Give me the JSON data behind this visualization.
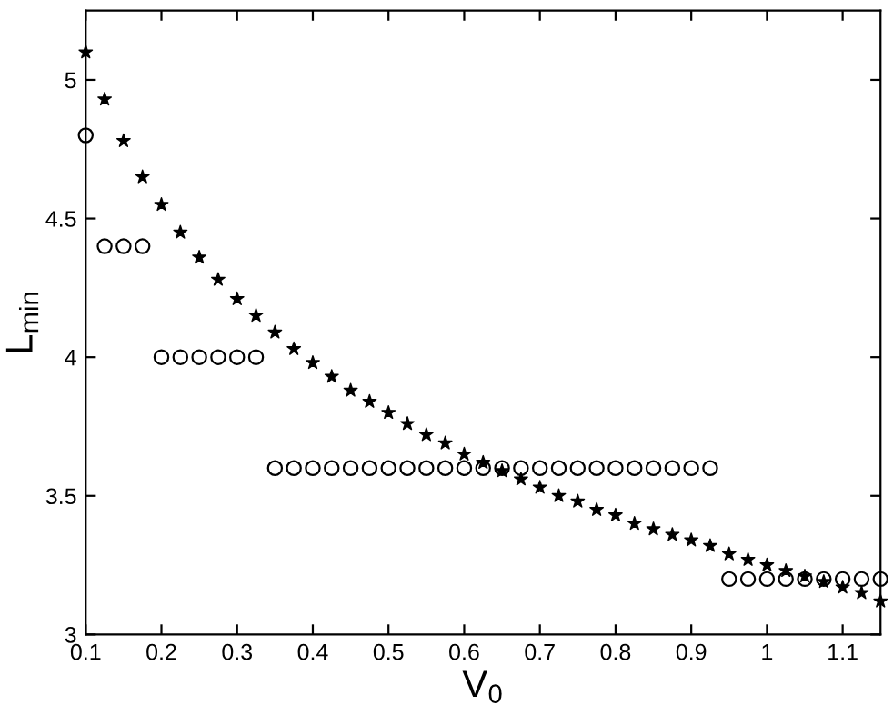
{
  "chart_data": {
    "type": "scatter",
    "xlabel": "V$_{0}$",
    "ylabel": "L$_{min}$",
    "xlim": [
      0.1,
      1.15
    ],
    "ylim": [
      3,
      5.25
    ],
    "xticks": [
      0.1,
      0.2,
      0.3,
      0.4,
      0.5,
      0.6,
      0.7,
      0.8,
      0.9,
      1,
      1.1
    ],
    "yticks": [
      3,
      3.5,
      4,
      4.5,
      5
    ],
    "grid": false,
    "series": [
      {
        "color": "#000000",
        "marker": "star",
        "x": [
          0.1,
          0.125,
          0.15,
          0.175,
          0.2,
          0.225,
          0.25,
          0.275,
          0.3,
          0.325,
          0.35,
          0.375,
          0.4,
          0.425,
          0.45,
          0.475,
          0.5,
          0.525,
          0.55,
          0.575,
          0.6,
          0.625,
          0.65,
          0.675,
          0.7,
          0.725,
          0.75,
          0.775,
          0.8,
          0.825,
          0.85,
          0.875,
          0.9,
          0.925,
          0.95,
          0.975,
          1.0,
          1.025,
          1.05,
          1.075,
          1.1,
          1.125,
          1.15
        ],
        "values": [
          5.1,
          4.93,
          4.78,
          4.65,
          4.55,
          4.45,
          4.36,
          4.28,
          4.21,
          4.15,
          4.09,
          4.03,
          3.98,
          3.93,
          3.88,
          3.84,
          3.8,
          3.76,
          3.72,
          3.69,
          3.65,
          3.62,
          3.59,
          3.56,
          3.53,
          3.5,
          3.48,
          3.45,
          3.43,
          3.4,
          3.38,
          3.36,
          3.34,
          3.32,
          3.29,
          3.27,
          3.25,
          3.23,
          3.21,
          3.19,
          3.17,
          3.15,
          3.12
        ]
      },
      {
        "color": "#000000",
        "marker": "circle",
        "x": [
          0.1,
          0.125,
          0.15,
          0.175,
          0.2,
          0.225,
          0.25,
          0.275,
          0.3,
          0.325,
          0.35,
          0.375,
          0.4,
          0.425,
          0.45,
          0.475,
          0.5,
          0.525,
          0.55,
          0.575,
          0.6,
          0.625,
          0.65,
          0.675,
          0.7,
          0.725,
          0.75,
          0.775,
          0.8,
          0.825,
          0.85,
          0.875,
          0.9,
          0.925,
          0.95,
          0.975,
          1.0,
          1.025,
          1.05,
          1.075,
          1.1,
          1.125,
          1.15
        ],
        "values": [
          4.8,
          4.4,
          4.4,
          4.4,
          4.0,
          4.0,
          4.0,
          4.0,
          4.0,
          4.0,
          3.6,
          3.6,
          3.6,
          3.6,
          3.6,
          3.6,
          3.6,
          3.6,
          3.6,
          3.6,
          3.6,
          3.6,
          3.6,
          3.6,
          3.6,
          3.6,
          3.6,
          3.6,
          3.6,
          3.6,
          3.6,
          3.6,
          3.6,
          3.6,
          3.2,
          3.2,
          3.2,
          3.2,
          3.2,
          3.2,
          3.2,
          3.2,
          3.2
        ]
      }
    ]
  }
}
